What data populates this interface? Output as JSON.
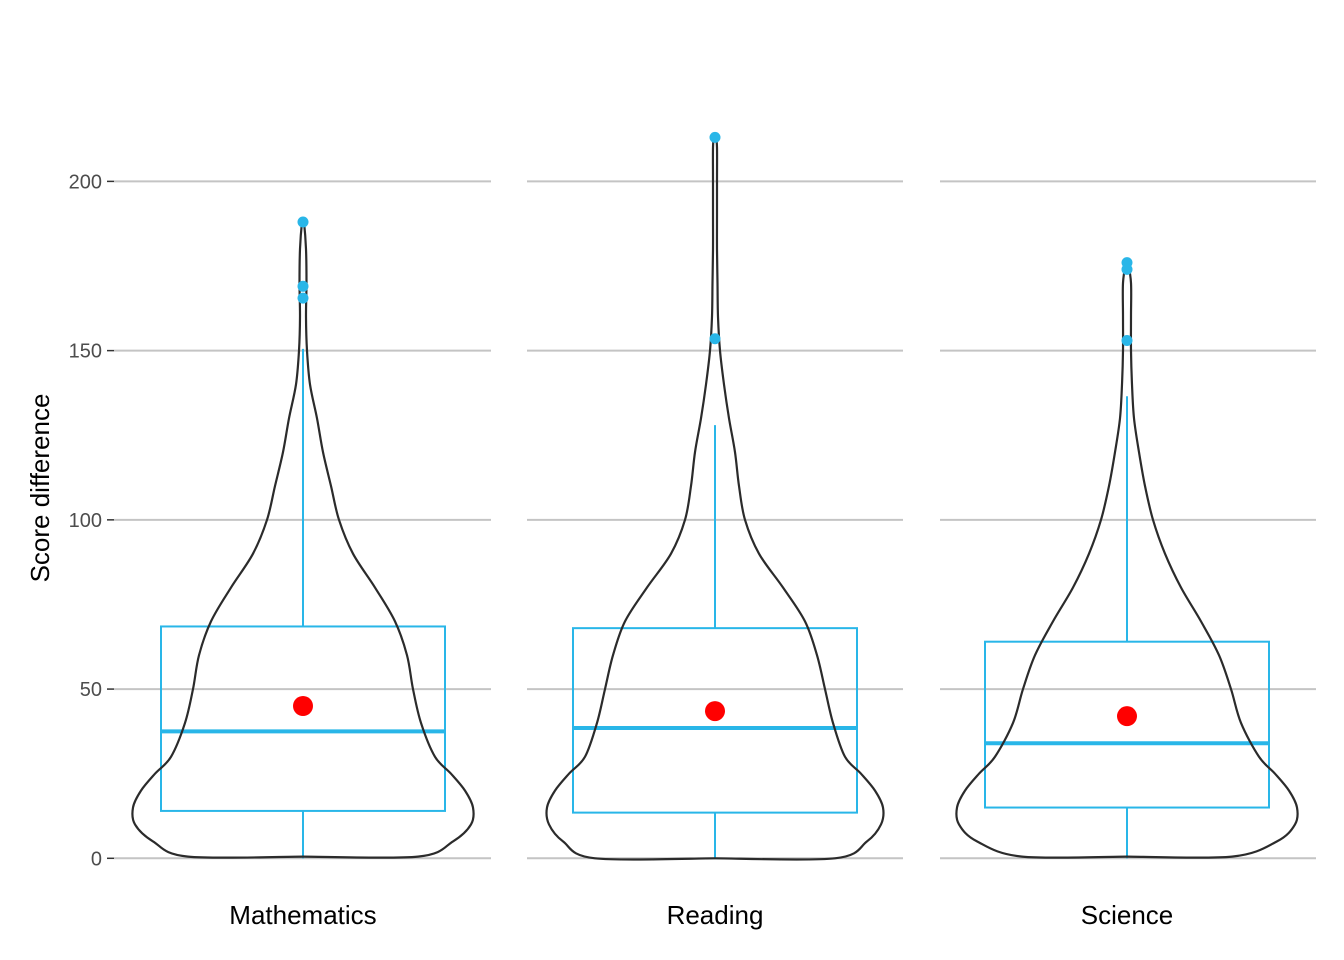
{
  "chart_data": {
    "type": "violin-box",
    "title": "",
    "xlabel": "",
    "ylabel": "Score difference",
    "ylim": [
      -7,
      227
    ],
    "yticks": [
      0,
      50,
      100,
      150,
      200
    ],
    "grid": "horizontal",
    "legend": "none",
    "colors": {
      "box": "#29b6e8",
      "outlier": "#29b6e8",
      "violin": "#2b2b2b",
      "mean": "#ff0000",
      "grid": "#c4c4c4",
      "axis_tick": "#333333"
    },
    "panels": [
      {
        "label": "Mathematics",
        "box": {
          "lower_whisker": 0,
          "q1": 14,
          "median": 37.5,
          "q3": 68.5,
          "upper_whisker": 150.5
        },
        "mean": 45,
        "outliers": [
          188,
          169,
          165.5
        ],
        "violin": {
          "y": [
            0.5,
            5,
            10,
            15,
            20,
            25,
            30,
            40,
            50,
            60,
            70,
            80,
            90,
            100,
            110,
            120,
            130,
            140,
            150,
            160,
            170,
            180,
            188
          ],
          "halfwidth": [
            115,
            150,
            168,
            170,
            162,
            148,
            132,
            118,
            110,
            104,
            92,
            72,
            50,
            36,
            28,
            20,
            14,
            7,
            4,
            3,
            3.5,
            3,
            1
          ]
        }
      },
      {
        "label": "Reading",
        "box": {
          "lower_whisker": 0,
          "q1": 13.5,
          "median": 38.5,
          "q3": 68,
          "upper_whisker": 128
        },
        "mean": 43.5,
        "outliers": [
          213,
          153.5
        ],
        "violin": {
          "y": [
            0,
            5,
            10,
            15,
            20,
            25,
            30,
            40,
            50,
            60,
            70,
            80,
            90,
            100,
            110,
            120,
            130,
            140,
            150,
            160,
            170,
            180,
            190,
            200,
            210,
            213
          ],
          "halfwidth": [
            120,
            152,
            166,
            168,
            160,
            146,
            130,
            118,
            110,
            102,
            90,
            68,
            44,
            30,
            24,
            20,
            14,
            9,
            5,
            3,
            2.5,
            2,
            2,
            2,
            2,
            1
          ]
        }
      },
      {
        "label": "Science",
        "box": {
          "lower_whisker": 0,
          "q1": 15,
          "median": 34,
          "q3": 64,
          "upper_whisker": 136.5
        },
        "mean": 42,
        "outliers": [
          176,
          174,
          153
        ],
        "violin": {
          "y": [
            0.5,
            5,
            10,
            15,
            20,
            25,
            30,
            40,
            50,
            60,
            70,
            80,
            90,
            100,
            110,
            120,
            130,
            140,
            150,
            160,
            170,
            176
          ],
          "halfwidth": [
            105,
            150,
            168,
            170,
            162,
            148,
            132,
            114,
            104,
            92,
            74,
            54,
            38,
            26,
            18,
            12,
            7,
            5,
            4,
            4,
            4,
            1
          ]
        }
      }
    ]
  }
}
